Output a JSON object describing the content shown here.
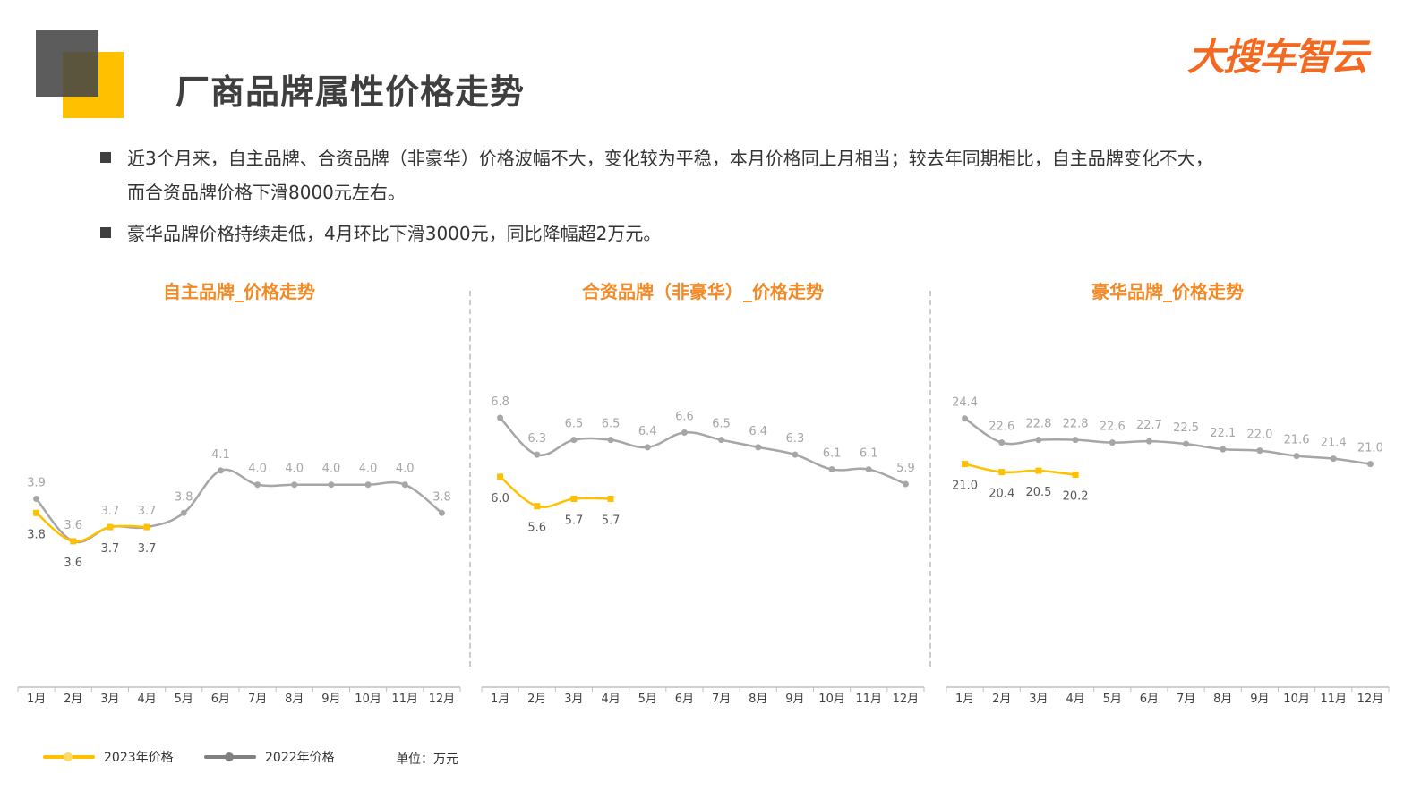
{
  "header": {
    "title": "厂商品牌属性价格走势",
    "logo_text": "大搜车智云"
  },
  "bullets": [
    {
      "lines": [
        "近3个月来，自主品牌、合资品牌（非豪华）价格波幅不大，变化较为平稳，本月价格同上月相当；较去年同期相比，自主品牌变化不大，",
        "而合资品牌价格下滑8000元左右。"
      ]
    },
    {
      "lines": [
        "豪华品牌价格持续走低，4月环比下滑3000元，同比降幅超2万元。"
      ]
    }
  ],
  "legend": {
    "series_2023": "2023年价格",
    "series_2022": "2022年价格",
    "unit": "单位：万元"
  },
  "colors": {
    "series_2023": "#FFC000",
    "series_2022": "#A6A6A6",
    "title_accent": "#F28A28",
    "logo": "#F26A21"
  },
  "chart_data": [
    {
      "type": "line",
      "title": "自主品牌_价格走势",
      "categories": [
        "1月",
        "2月",
        "3月",
        "4月",
        "5月",
        "6月",
        "7月",
        "8月",
        "9月",
        "10月",
        "11月",
        "12月"
      ],
      "series": [
        {
          "name": "2023年价格",
          "values": [
            3.8,
            3.6,
            3.7,
            3.7,
            null,
            null,
            null,
            null,
            null,
            null,
            null,
            null
          ]
        },
        {
          "name": "2022年价格",
          "values": [
            3.9,
            3.6,
            3.7,
            3.7,
            3.8,
            4.1,
            4.0,
            4.0,
            4.0,
            4.0,
            4.0,
            3.8
          ]
        }
      ],
      "ylim": [
        2.65,
        5.15
      ]
    },
    {
      "type": "line",
      "title": "合资品牌（非豪华）_价格走势",
      "categories": [
        "1月",
        "2月",
        "3月",
        "4月",
        "5月",
        "6月",
        "7月",
        "8月",
        "9月",
        "10月",
        "11月",
        "12月"
      ],
      "series": [
        {
          "name": "2023年价格",
          "values": [
            6.0,
            5.6,
            5.7,
            5.7,
            null,
            null,
            null,
            null,
            null,
            null,
            null,
            null
          ]
        },
        {
          "name": "2022年价格",
          "values": [
            6.8,
            6.3,
            6.5,
            6.5,
            6.4,
            6.6,
            6.5,
            6.4,
            6.3,
            6.1,
            6.1,
            5.9
          ]
        }
      ],
      "ylim": [
        3.3,
        8.1
      ]
    },
    {
      "type": "line",
      "title": "豪华品牌_价格走势",
      "categories": [
        "1月",
        "2月",
        "3月",
        "4月",
        "5月",
        "6月",
        "7月",
        "8月",
        "9月",
        "10月",
        "11月",
        "12月"
      ],
      "series": [
        {
          "name": "2023年价格",
          "values": [
            21.0,
            20.4,
            20.5,
            20.2,
            null,
            null,
            null,
            null,
            null,
            null,
            null,
            null
          ]
        },
        {
          "name": "2022年价格",
          "values": [
            24.4,
            22.6,
            22.8,
            22.8,
            22.6,
            22.7,
            22.5,
            22.1,
            22.0,
            21.6,
            21.4,
            21.0
          ]
        }
      ],
      "ylim": [
        5.2,
        31.6
      ]
    }
  ]
}
